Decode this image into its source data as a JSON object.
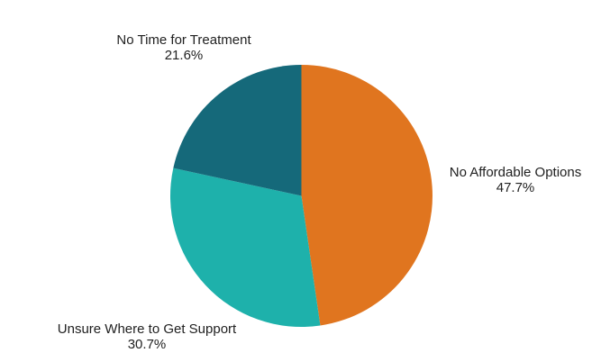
{
  "chart_data": {
    "type": "pie",
    "title": "",
    "slices": [
      {
        "label": "No Affordable Options",
        "value": 47.7,
        "pct_label": "47.7%",
        "color": "#E0751F"
      },
      {
        "label": "Unsure Where to Get Support",
        "value": 30.7,
        "pct_label": "30.7%",
        "color": "#1EB1AB"
      },
      {
        "label": "No Time for Treatment",
        "value": 21.6,
        "pct_label": "21.6%",
        "color": "#15697A"
      }
    ],
    "total": 100,
    "start_angle_deg": 0,
    "direction": "clockwise",
    "value_format": "percent",
    "legend_position": "outside-labels",
    "background_color": "#FFFFFF",
    "label_color": "#212121"
  }
}
